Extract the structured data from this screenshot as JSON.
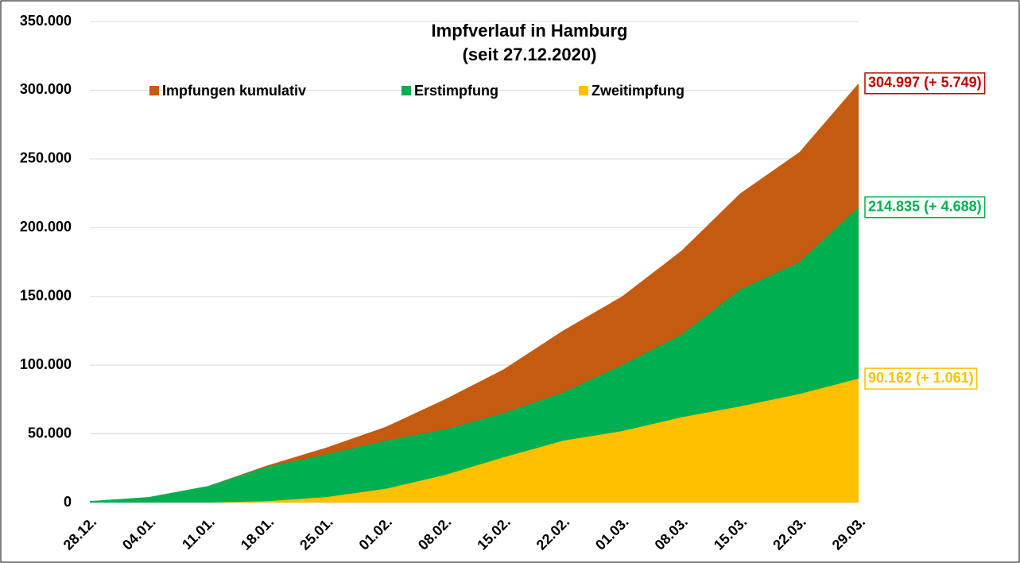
{
  "chart_data": {
    "type": "area",
    "title": "Impfverlauf in Hamburg",
    "subtitle": "(seit 27.12.2020)",
    "categories": [
      "28.12.",
      "04.01.",
      "11.01.",
      "18.01.",
      "25.01.",
      "01.02.",
      "08.02.",
      "15.02.",
      "22.02.",
      "01.03.",
      "08.03.",
      "15.03.",
      "22.03.",
      "29.03."
    ],
    "series": [
      {
        "name": "Impfungen kumulativ",
        "color": "#c55a11",
        "values": [
          1000,
          4000,
          12000,
          27000,
          40000,
          55000,
          75000,
          97000,
          125000,
          150000,
          183000,
          225000,
          255000,
          304997
        ],
        "end_label": "304.997 (+ 5.749)",
        "label_color": "#c00000"
      },
      {
        "name": "Erstimpfung",
        "color": "#00b050",
        "values": [
          1000,
          4000,
          12000,
          26000,
          35000,
          45000,
          53000,
          65000,
          80000,
          100000,
          122000,
          155000,
          175000,
          214835
        ],
        "end_label": "214.835 (+ 4.688)",
        "label_color": "#00b050"
      },
      {
        "name": "Zweitimpfung",
        "color": "#ffc000",
        "values": [
          0,
          0,
          0,
          1000,
          4000,
          10000,
          20000,
          33000,
          45000,
          52000,
          62000,
          70000,
          79000,
          90162
        ],
        "end_label": "90.162 (+ 1.061)",
        "label_color": "#ffc000"
      }
    ],
    "ylim": [
      0,
      350000
    ],
    "yticks": [
      0,
      {
        "value": 50000,
        "label": "50.000"
      },
      {
        "value": 100000,
        "label": "100.000"
      },
      {
        "value": 150000,
        "label": "150.000"
      },
      {
        "value": 200000,
        "label": "200.000"
      },
      {
        "value": 250000,
        "label": "250.000"
      },
      {
        "value": 300000,
        "label": "300.000"
      },
      {
        "value": 350000,
        "label": "350.000"
      }
    ],
    "grid": true,
    "legend": "top"
  }
}
